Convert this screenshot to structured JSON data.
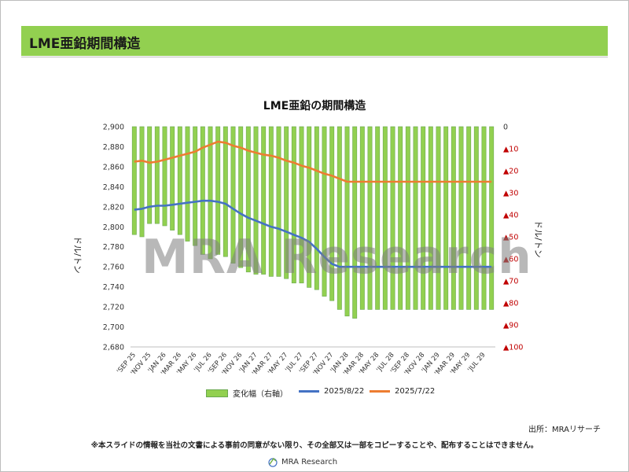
{
  "header": {
    "title": "LME亜鉛期間構造"
  },
  "colors": {
    "header_bg": "#92d050",
    "bar": "#92d050",
    "bar_border": "#6aa84f",
    "line_0822": "#4472c4",
    "line_0722": "#ed7d31",
    "right_tick": "#c00000"
  },
  "chart_data": {
    "type": "bar+line",
    "title": "LME亜鉛の期間構造",
    "ylabel_left": "ドル/トン",
    "ylabel_right": "ドル/トン",
    "ylim_left": [
      2680,
      2900
    ],
    "ylim_right": [
      -100,
      0
    ],
    "y_ticks_left": [
      "2,680",
      "2,700",
      "2,720",
      "2,740",
      "2,760",
      "2,780",
      "2,800",
      "2,820",
      "2,840",
      "2,860",
      "2,880",
      "2,900"
    ],
    "y_ticks_right": [
      "0",
      "▲10",
      "▲20",
      "▲30",
      "▲40",
      "▲50",
      "▲60",
      "▲70",
      "▲80",
      "▲90",
      "▲100"
    ],
    "x_tick_labels": [
      "'SEP 25",
      "'NOV 25",
      "'JAN 26",
      "'MAR 26",
      "'MAY 26",
      "'JUL 26",
      "'SEP 26",
      "'NOV 26",
      "'JAN 27",
      "'MAR 27",
      "'MAY 27",
      "'JUL 27",
      "'SEP 27",
      "'NOV 27",
      "'JAN 28",
      "'MAR 28",
      "'MAY 28",
      "'JUL 28",
      "'SEP 28",
      "'NOV 28",
      "'JAN 29",
      "'MAR 29",
      "'MAY 29",
      "'JUL 29"
    ],
    "series": [
      {
        "name": "変化幅（右軸）",
        "axis": "right",
        "type": "bar",
        "values": [
          -49,
          -50,
          -44,
          -44,
          -45,
          -47,
          -49,
          -52,
          -54,
          -58,
          -60,
          -58,
          -59,
          -62,
          -64,
          -66,
          -67,
          -67,
          -68,
          -68,
          -69,
          -71,
          -71,
          -73,
          -74,
          -77,
          -79,
          -83,
          -86,
          -87,
          -83,
          -83,
          -83,
          -83,
          -83,
          -83,
          -83,
          -83,
          -83,
          -83,
          -83,
          -83,
          -83,
          -83,
          -83,
          -83,
          -83,
          -83
        ]
      },
      {
        "name": "2025/8/22",
        "axis": "left",
        "type": "line",
        "values": [
          2817,
          2818,
          2820,
          2821,
          2821,
          2822,
          2823,
          2824,
          2825,
          2826,
          2826,
          2825,
          2823,
          2818,
          2813,
          2809,
          2806,
          2803,
          2800,
          2798,
          2795,
          2792,
          2789,
          2785,
          2778,
          2770,
          2763,
          2760,
          2760,
          2760,
          2760,
          2760,
          2760,
          2760,
          2760,
          2760,
          2760,
          2760,
          2760,
          2760,
          2760,
          2760,
          2760,
          2760,
          2760,
          2760,
          2760,
          2760
        ]
      },
      {
        "name": "2025/7/22",
        "axis": "left",
        "type": "line",
        "values": [
          2865,
          2866,
          2864,
          2865,
          2867,
          2869,
          2871,
          2873,
          2875,
          2879,
          2882,
          2885,
          2884,
          2881,
          2879,
          2876,
          2874,
          2872,
          2871,
          2869,
          2866,
          2864,
          2861,
          2859,
          2856,
          2853,
          2851,
          2848,
          2845,
          2845,
          2845,
          2845,
          2845,
          2845,
          2845,
          2845,
          2845,
          2845,
          2845,
          2845,
          2845,
          2845,
          2845,
          2845,
          2845,
          2845,
          2845,
          2845
        ]
      }
    ]
  },
  "watermark": "MRA Research",
  "source": "出所：MRAリサーチ",
  "disclaimer": "※本スライドの情報を当社の文書による事前の同意がない限り、その全部又は一部をコピーすることや、配布することはできません。",
  "footer_logo_text": "MRA Research"
}
